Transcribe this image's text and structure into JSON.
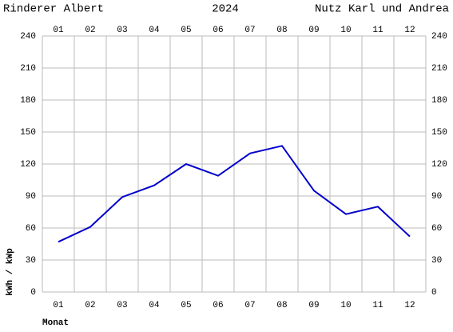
{
  "chart_data": {
    "type": "line",
    "title": "2024",
    "title_left": "Rinderer Albert",
    "title_right": "Nutz Karl und Andrea",
    "title_left_color": "#0000cc",
    "title_right_color": "#e00000",
    "x_label": "Monat",
    "y_label": "kWh / kWp",
    "categories": [
      "01",
      "02",
      "03",
      "04",
      "05",
      "06",
      "07",
      "08",
      "09",
      "10",
      "11",
      "12"
    ],
    "series": [
      {
        "color": "#0000cc",
        "values": [
          47,
          61,
          89,
          100,
          120,
          109,
          130,
          137,
          95,
          73,
          80,
          52
        ]
      }
    ],
    "ylim": [
      0,
      240
    ],
    "yticks": [
      0,
      30,
      60,
      90,
      120,
      150,
      180,
      210,
      240
    ],
    "grid": true
  }
}
